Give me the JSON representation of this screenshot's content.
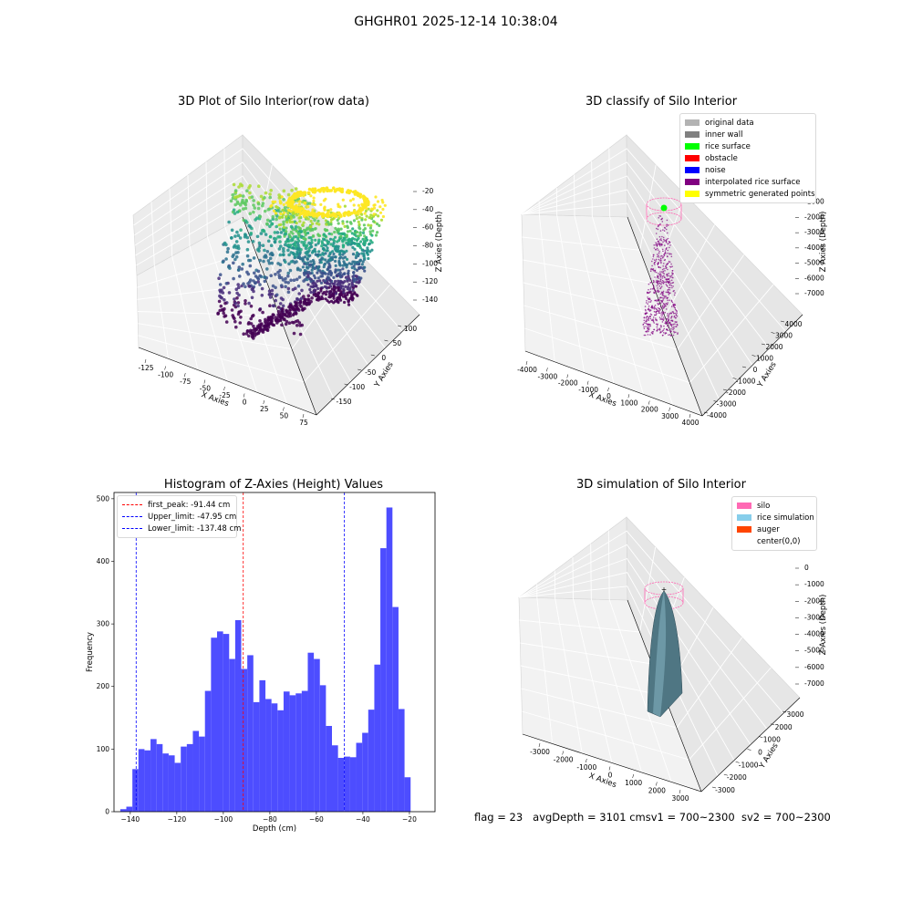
{
  "figure": {
    "suptitle": "GHGHR01 2025-12-14 10:38:04",
    "footer": {
      "flag": "flag = 23",
      "avg_depth": "avgDepth = 3101 cm",
      "sv1": "sv1 = 700~2300",
      "sv2": "sv2 = 700~2300"
    }
  },
  "panels": {
    "raw": {
      "title": "3D Plot of Silo Interior(row data)",
      "xlabel": "X Axies",
      "ylabel": "Y Axies",
      "zlabel": "Z Axies (Depth)",
      "xticks": [
        "-125",
        "-100",
        "-75",
        "-50",
        "-25",
        "0",
        "25",
        "50",
        "75"
      ],
      "yticks": [
        "100",
        "50",
        "0",
        "-50",
        "-100",
        "-150"
      ],
      "zticks": [
        "-20",
        "-40",
        "-60",
        "-80",
        "-100",
        "-120",
        "-140"
      ]
    },
    "classify": {
      "title": "3D classify of Silo Interior",
      "xlabel": "X Axies",
      "ylabel": "Y Axies",
      "zlabel": "Z Axies (Depth)",
      "xticks": [
        "-4000",
        "-3000",
        "-2000",
        "-1000",
        "0",
        "1000",
        "2000",
        "3000",
        "4000"
      ],
      "yticks": [
        "4000",
        "3000",
        "2000",
        "1000",
        "0",
        "-1000",
        "-2000",
        "-3000",
        "-4000"
      ],
      "zticks": [
        "0",
        "-1000",
        "-2000",
        "-3000",
        "-4000",
        "-5000",
        "-6000",
        "-7000"
      ],
      "legend": [
        {
          "label": "original data",
          "color": "#b3b3b3"
        },
        {
          "label": "inner wall",
          "color": "#808080"
        },
        {
          "label": "rice surface",
          "color": "#00ff00"
        },
        {
          "label": "obstacle",
          "color": "#ff0000"
        },
        {
          "label": "noise",
          "color": "#0000ff"
        },
        {
          "label": "interpolated rice surface",
          "color": "#800080"
        },
        {
          "label": "symmetric generated points",
          "color": "#ffff00"
        }
      ]
    },
    "simulation": {
      "title": "3D simulation of Silo Interior",
      "xlabel": "X Axies",
      "ylabel": "Y Axies",
      "zlabel": "Z Axies (Depth)",
      "xticks": [
        "-3000",
        "-2000",
        "-1000",
        "0",
        "1000",
        "2000",
        "3000"
      ],
      "yticks": [
        "3000",
        "2000",
        "1000",
        "0",
        "-1000",
        "-2000",
        "-3000"
      ],
      "zticks": [
        "0",
        "-1000",
        "-2000",
        "-3000",
        "-4000",
        "-5000",
        "-6000",
        "-7000"
      ],
      "legend": [
        {
          "label": "silo",
          "color": "#ff69b4"
        },
        {
          "label": "rice simulation",
          "color": "#87ceeb"
        },
        {
          "label": "auger",
          "color": "#ff4500"
        },
        {
          "label": "center(0,0)",
          "color": ""
        }
      ]
    }
  },
  "chart_data": {
    "type": "bar",
    "title": "Histogram of Z-Axies (Height) Values",
    "xlabel": "Depth (cm)",
    "ylabel": "Frequency",
    "xlim": [
      -147,
      -9
    ],
    "ylim": [
      0,
      510
    ],
    "xticks": [
      -140,
      -120,
      -100,
      -80,
      -60,
      -40,
      -20
    ],
    "yticks": [
      0,
      100,
      200,
      300,
      400,
      500
    ],
    "bar_color": "#4d4dff",
    "bin_start": -144.3,
    "bin_width": 2.6,
    "values": [
      4,
      8,
      68,
      100,
      98,
      116,
      108,
      93,
      90,
      78,
      104,
      108,
      129,
      120,
      193,
      278,
      288,
      284,
      244,
      306,
      228,
      250,
      175,
      210,
      180,
      173,
      162,
      192,
      186,
      189,
      193,
      254,
      244,
      202,
      137,
      106,
      86,
      88,
      87,
      110,
      126,
      163,
      235,
      421,
      486,
      327,
      164,
      55
    ],
    "vlines": [
      {
        "label": "first_peak: -91.44 cm",
        "x": -91.44,
        "color": "#ff0000"
      },
      {
        "label": "Upper_limit: -47.95 cm",
        "x": -47.95,
        "color": "#0000ff"
      },
      {
        "label": "Lower_limit: -137.48 cm",
        "x": -137.48,
        "color": "#0000ff"
      }
    ]
  }
}
